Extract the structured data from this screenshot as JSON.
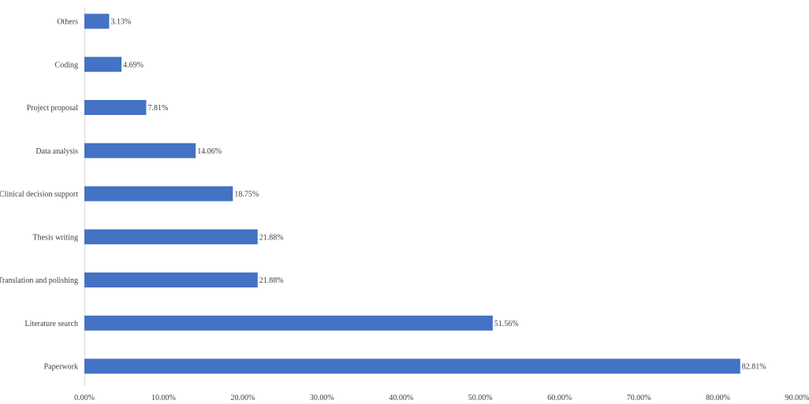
{
  "chart_data": {
    "type": "bar",
    "orientation": "horizontal",
    "categories": [
      "Others",
      "Coding",
      "Project proposal",
      "Data analysis",
      "Clinical decision support",
      "Thesis writing",
      "Translation and polishing",
      "Literature search",
      "Paperwork"
    ],
    "values": [
      3.13,
      4.69,
      7.81,
      14.06,
      18.75,
      21.88,
      21.88,
      51.56,
      82.81
    ],
    "value_labels": [
      "3.13%",
      "4.69%",
      "7.81%",
      "14.06%",
      "18.75%",
      "21.88%",
      "21.88%",
      "51.56%",
      "82.81%"
    ],
    "x_ticks": [
      "0.00%",
      "10.00%",
      "20.00%",
      "30.00%",
      "40.00%",
      "50.00%",
      "60.00%",
      "70.00%",
      "80.00%",
      "90.00%"
    ],
    "xlim": [
      0,
      90
    ],
    "x_tick_step": 10,
    "grid": false,
    "legend": "none",
    "bar_color": "#4472C4",
    "axis_color": "#D9D9D9",
    "text_color": "#404040"
  }
}
